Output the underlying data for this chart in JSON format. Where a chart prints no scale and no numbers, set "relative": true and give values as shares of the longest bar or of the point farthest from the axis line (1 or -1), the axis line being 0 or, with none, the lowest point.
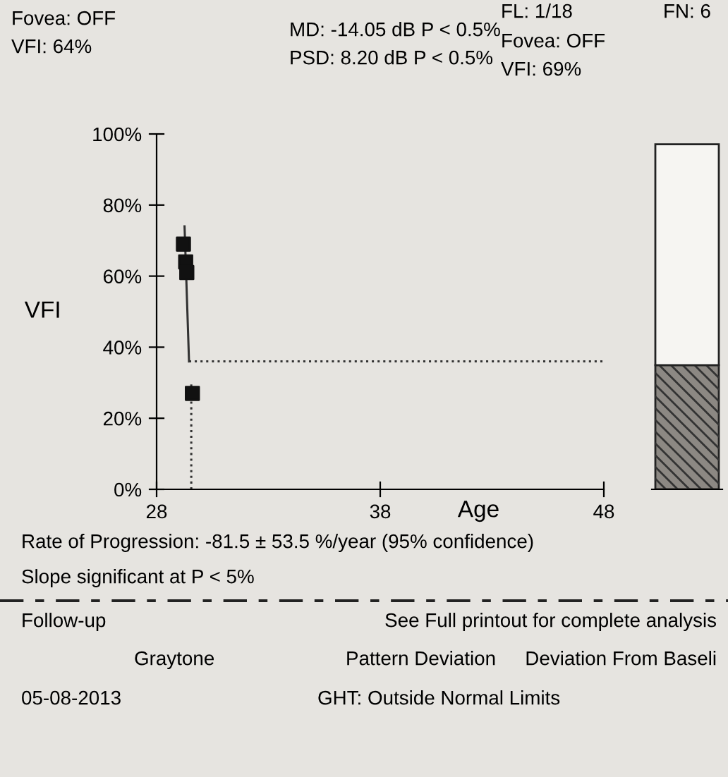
{
  "chart_data": [
    {
      "type": "scatter",
      "ylabel": "VFI",
      "xlabel": "Age",
      "xlim": [
        28,
        48
      ],
      "xticks": [
        28,
        38,
        48
      ],
      "ylim": [
        0,
        100
      ],
      "yticks": [
        {
          "value": 0,
          "label": "0%"
        },
        {
          "value": 20,
          "label": "20%"
        },
        {
          "value": 40,
          "label": "40%"
        },
        {
          "value": 60,
          "label": "60%"
        },
        {
          "value": 80,
          "label": "80%"
        },
        {
          "value": 100,
          "label": "100%"
        }
      ],
      "grid": false,
      "legend": false,
      "series": [
        {
          "type": "line",
          "color": "#333333",
          "line_style": "solid",
          "marker": "none",
          "x": [
            29.25,
            29.45
          ],
          "values": [
            74,
            36
          ]
        },
        {
          "type": "line",
          "color": "#333333",
          "line_style": "dotted",
          "marker": "none",
          "x": [
            29.45,
            48
          ],
          "values": [
            36,
            36
          ]
        },
        {
          "type": "line",
          "color": "#333333",
          "line_style": "dotted",
          "marker": "none",
          "x": [
            29.55,
            29.55
          ],
          "values": [
            0,
            30
          ]
        },
        {
          "type": "scatter",
          "color": "#111111",
          "marker": "square",
          "x": [
            29.2,
            29.3,
            29.35,
            29.6
          ],
          "values": [
            69,
            64,
            61,
            27
          ]
        }
      ],
      "annotations": [
        "Fovea: OFF",
        "VFI: 64%",
        "MD: -14.05 dB P < 0.5%",
        "PSD: 8.20 dB P < 0.5%",
        "FL: 1/18",
        "Fovea: OFF",
        "VFI: 69%",
        "FN: 6",
        "Rate of Progression: -81.5 ± 53.5 %/year (95% confidence)",
        "Slope significant at P < 5%",
        "Follow-up",
        "See Full printout for complete analysis",
        "Graytone",
        "Pattern Deviation",
        "Deviation From Baseli",
        "05-08-2013",
        "GHT: Outside Normal Limits"
      ]
    },
    {
      "type": "bar",
      "stacked": true,
      "categories": [
        null
      ],
      "relative": true,
      "series": [
        {
          "color": "#8c8883",
          "values": [
            0.36
          ]
        },
        {
          "color": "#f6f5f2",
          "values": [
            0.64
          ]
        }
      ]
    }
  ]
}
